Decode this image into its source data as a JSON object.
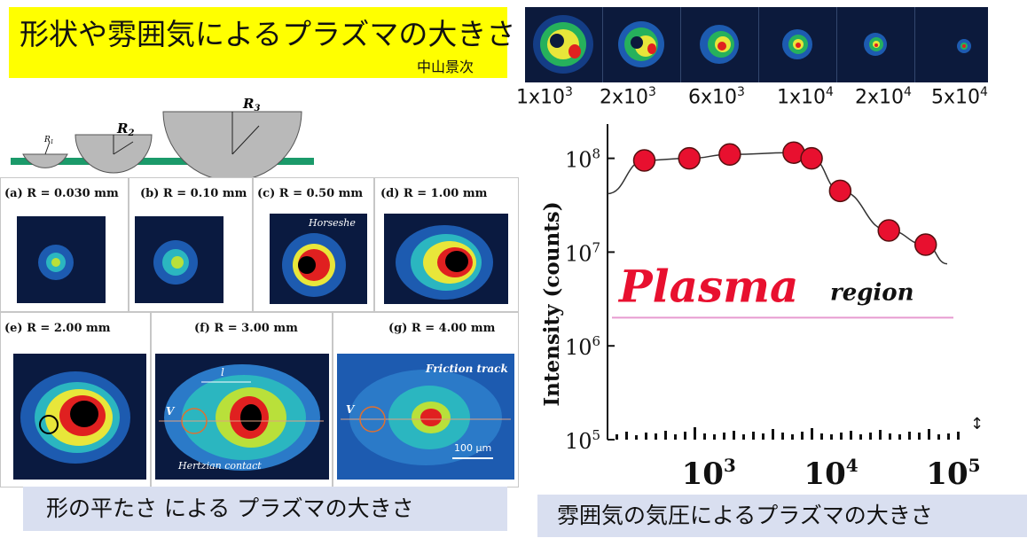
{
  "title": {
    "main": "形状や雰囲気によるプラズマの大きさ",
    "author": "中山景次"
  },
  "strip": {
    "labels": [
      {
        "base": "1x10",
        "exp": "3"
      },
      {
        "base": "2x10",
        "exp": "3"
      },
      {
        "base": "6x10",
        "exp": "3"
      },
      {
        "base": "1x10",
        "exp": "4"
      },
      {
        "base": "2x10",
        "exp": "4"
      },
      {
        "base": "5x10",
        "exp": "4"
      }
    ]
  },
  "spheres": {
    "r1": "R",
    "r1_sub": "1",
    "r2": "R",
    "r2_sub": "2",
    "r3": "R",
    "r3_sub": "3"
  },
  "panels": [
    {
      "id": "a",
      "label": "(a) R = 0.030 mm"
    },
    {
      "id": "b",
      "label": "(b) R = 0.10 mm"
    },
    {
      "id": "c",
      "label": "(c) R = 0.50 mm",
      "note": "Horseshe"
    },
    {
      "id": "d",
      "label": "(d) R = 1.00 mm"
    },
    {
      "id": "e",
      "label": "(e) R = 2.00 mm"
    },
    {
      "id": "f",
      "label": "(f) R = 3.00 mm",
      "note": "Hertzian contact",
      "v": "V",
      "l": "l"
    },
    {
      "id": "g",
      "label": "(g) R = 4.00 mm",
      "note": "Friction track",
      "v": "V",
      "scale": "100 μm"
    }
  ],
  "captions": {
    "left": "形の平たさ による プラズマの大きさ",
    "right": "雰囲気の気圧によるプラズマの大きさ"
  },
  "chart_data": {
    "type": "scatter",
    "ylabel": "Intensity (counts)",
    "xscale": "log",
    "yscale": "log",
    "xlim": [
      150,
      130000
    ],
    "ylim": [
      100000,
      150000000
    ],
    "x_ticks": [
      "10^3",
      "10^4",
      "10^5"
    ],
    "y_ticks": [
      "10^5",
      "10^6",
      "10^7",
      "10^8"
    ],
    "series": [
      {
        "points": [
          {
            "x": 300,
            "y": 95000000
          },
          {
            "x": 700,
            "y": 100000000
          },
          {
            "x": 1500,
            "y": 110000000
          },
          {
            "x": 5000,
            "y": 115000000
          },
          {
            "x": 7000,
            "y": 100000000
          },
          {
            "x": 12000,
            "y": 45000000
          },
          {
            "x": 30000,
            "y": 17000000
          },
          {
            "x": 60000,
            "y": 12000000
          }
        ]
      }
    ],
    "annotations": [
      {
        "text": "Plasma",
        "color": "#e8102f"
      },
      {
        "text": "region",
        "color": "#111111"
      }
    ],
    "plasma_boundary_y": 2000000,
    "point_color": "#e8102f"
  }
}
